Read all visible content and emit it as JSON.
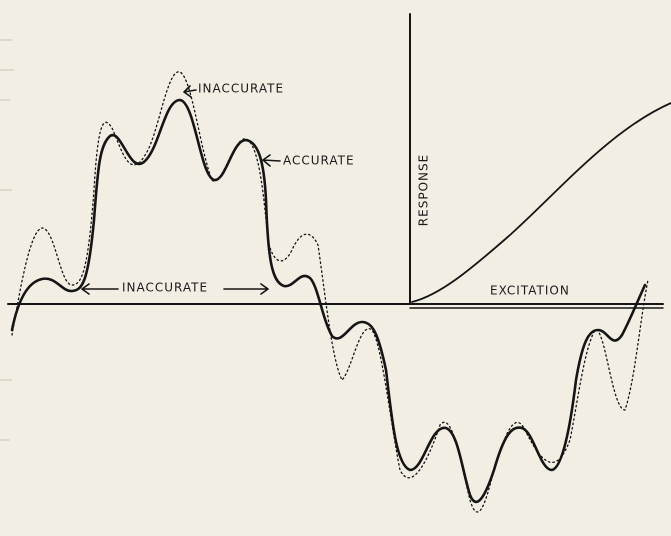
{
  "annotations": {
    "inaccurate_top": "INACCURATE",
    "accurate": "ACCURATE",
    "inaccurate_middle": "INACCURATE"
  },
  "axes": {
    "y_label": "RESPONSE",
    "x_label": "EXCITATION"
  }
}
